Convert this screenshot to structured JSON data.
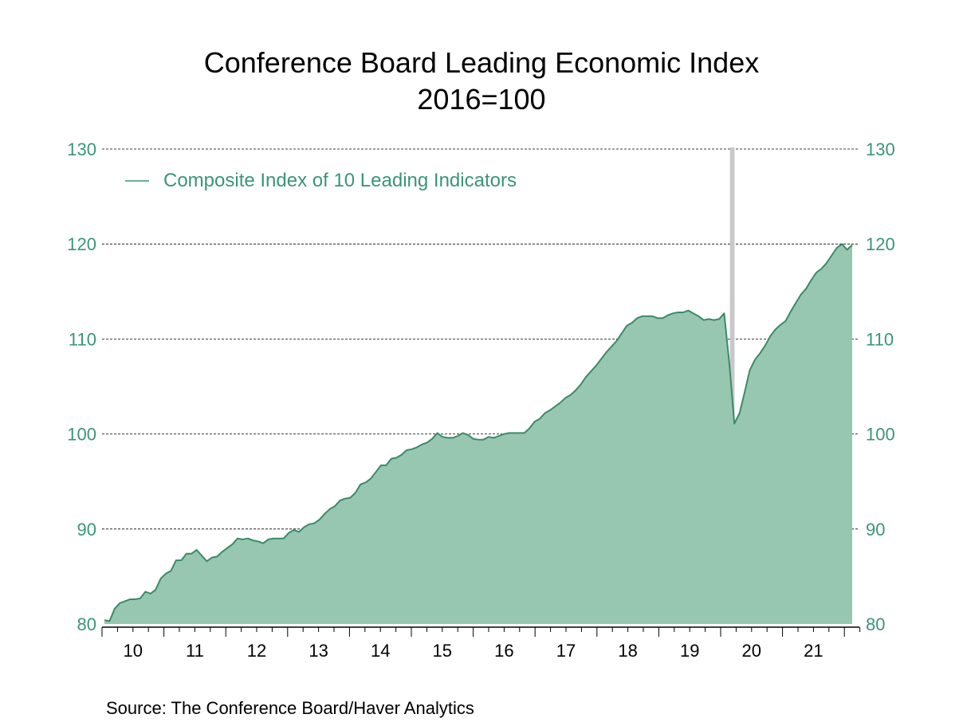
{
  "chart_data": {
    "type": "area",
    "title": "Conference Board Leading Economic Index",
    "subtitle": "2016=100",
    "source": "Source:  The Conference Board/Haver Analytics",
    "xlabel": "",
    "ylabel": "",
    "ylim": [
      80,
      130
    ],
    "yticks": [
      80,
      90,
      100,
      110,
      120,
      130
    ],
    "xtick_labels": [
      "10",
      "11",
      "12",
      "13",
      "14",
      "15",
      "16",
      "17",
      "18",
      "19",
      "20",
      "21"
    ],
    "x_start": "2010-01",
    "x_frequency": "monthly",
    "grid": true,
    "legend_position": "top-left",
    "recession_shading": [
      {
        "start": "2020-02",
        "end": "2020-04"
      }
    ],
    "colors": {
      "fill": "#98c7b1",
      "line": "#3a8a68",
      "recession": "#c8c8c8",
      "axis_text": "#3a9478"
    },
    "series": [
      {
        "name": "Composite Index of 10 Leading Indicators",
        "values": [
          80.4,
          80.3,
          81.6,
          82.2,
          82.4,
          82.6,
          82.6,
          82.7,
          83.4,
          83.2,
          83.6,
          84.8,
          85.3,
          85.6,
          86.7,
          86.7,
          87.4,
          87.4,
          87.8,
          87.2,
          86.6,
          87.0,
          87.1,
          87.6,
          88.0,
          88.4,
          89.0,
          88.9,
          89.0,
          88.8,
          88.7,
          88.5,
          88.9,
          89.0,
          89.0,
          89.0,
          89.6,
          89.9,
          89.7,
          90.2,
          90.5,
          90.6,
          91.0,
          91.6,
          92.1,
          92.4,
          93.0,
          93.2,
          93.3,
          93.8,
          94.7,
          94.9,
          95.3,
          96.0,
          96.7,
          96.7,
          97.4,
          97.5,
          97.8,
          98.3,
          98.4,
          98.6,
          98.9,
          99.1,
          99.5,
          100.1,
          99.7,
          99.6,
          99.6,
          99.8,
          100.1,
          99.9,
          99.5,
          99.4,
          99.4,
          99.7,
          99.6,
          99.8,
          100.0,
          100.1,
          100.1,
          100.1,
          100.1,
          100.6,
          101.3,
          101.6,
          102.2,
          102.5,
          102.9,
          103.3,
          103.8,
          104.1,
          104.6,
          105.2,
          106.0,
          106.6,
          107.2,
          107.9,
          108.6,
          109.2,
          109.8,
          110.6,
          111.4,
          111.7,
          112.2,
          112.4,
          112.4,
          112.4,
          112.2,
          112.2,
          112.5,
          112.7,
          112.8,
          112.8,
          113.0,
          112.7,
          112.4,
          112.0,
          112.1,
          112.0,
          112.1,
          112.7,
          107.5,
          101.1,
          102.2,
          104.4,
          106.7,
          107.8,
          108.5,
          109.3,
          110.3,
          111.0,
          111.5,
          111.9,
          112.9,
          113.8,
          114.7,
          115.3,
          116.2,
          117.0,
          117.4,
          118.0,
          118.8,
          119.6,
          120.0,
          119.4,
          119.9
        ]
      }
    ]
  }
}
